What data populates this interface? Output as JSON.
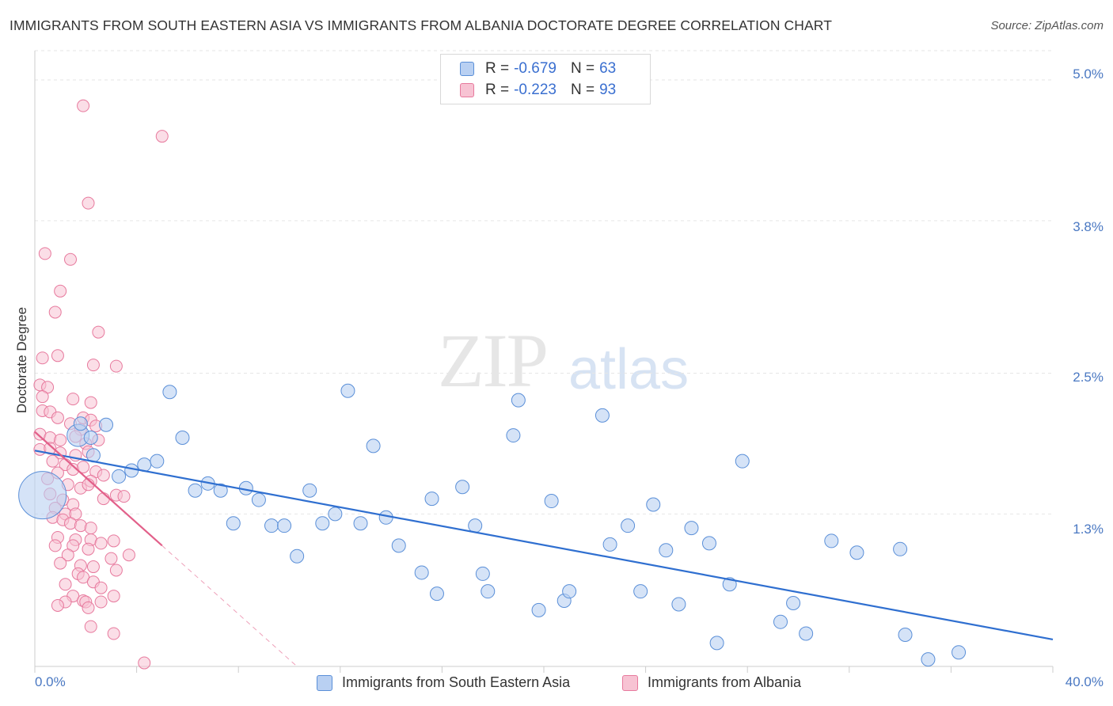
{
  "title": "IMMIGRANTS FROM SOUTH EASTERN ASIA VS IMMIGRANTS FROM ALBANIA DOCTORATE DEGREE CORRELATION CHART",
  "source": "Source: ZipAtlas.com",
  "watermark": {
    "part1": "ZIP",
    "part2": "atlas"
  },
  "colors": {
    "blue_fill": "#b9d0f2",
    "blue_stroke": "#5a8fd8",
    "blue_line": "#2f6fd0",
    "pink_fill": "#f7c3d3",
    "pink_stroke": "#e7799d",
    "pink_line": "#e2608a",
    "grid": "#e6e6e6",
    "axis_text": "#4a78c2"
  },
  "legend": [
    {
      "r_label": "R =",
      "r_value": "-0.679",
      "n_label": "N =",
      "n_value": "63"
    },
    {
      "r_label": "R =",
      "r_value": "-0.223",
      "n_label": "N =",
      "n_value": "93"
    }
  ],
  "series_labels": [
    "Immigrants from South Eastern Asia",
    "Immigrants from Albania"
  ],
  "chart_data": {
    "type": "scatter",
    "title": "IMMIGRANTS FROM SOUTH EASTERN ASIA VS IMMIGRANTS FROM ALBANIA DOCTORATE DEGREE CORRELATION CHART",
    "xlabel": "",
    "ylabel": "Doctorate Degree",
    "xlim": [
      0,
      40
    ],
    "ylim": [
      0,
      5.25
    ],
    "x_tick_labels": [
      "0.0%",
      "40.0%"
    ],
    "y_ticks": [
      1.3,
      2.5,
      3.8,
      5.0
    ],
    "y_tick_labels": [
      "1.3%",
      "2.5%",
      "3.8%",
      "5.0%"
    ],
    "grid": true,
    "legend_position": "top-center",
    "series": [
      {
        "name": "Immigrants from South Eastern Asia",
        "r": -0.679,
        "n": 63,
        "trend": {
          "x0": 0,
          "y0": 1.84,
          "x1": 40,
          "y1": 0.23
        },
        "points": [
          [
            0.3,
            1.46,
            30
          ],
          [
            1.7,
            1.97,
            14
          ],
          [
            1.8,
            2.07,
            10
          ],
          [
            2.2,
            1.95,
            10
          ],
          [
            2.3,
            1.8,
            10
          ],
          [
            2.8,
            2.06,
            10
          ],
          [
            3.3,
            1.62,
            10
          ],
          [
            3.8,
            1.67,
            10
          ],
          [
            4.3,
            1.72,
            10
          ],
          [
            4.8,
            1.75,
            10
          ],
          [
            5.3,
            2.34,
            10
          ],
          [
            5.8,
            1.95,
            10
          ],
          [
            6.3,
            1.5,
            10
          ],
          [
            6.8,
            1.56,
            10
          ],
          [
            7.3,
            1.5,
            10
          ],
          [
            7.8,
            1.22,
            10
          ],
          [
            8.3,
            1.52,
            10
          ],
          [
            8.8,
            1.42,
            10
          ],
          [
            9.3,
            1.2,
            10
          ],
          [
            9.8,
            1.2,
            10
          ],
          [
            10.3,
            0.94,
            10
          ],
          [
            10.8,
            1.5,
            10
          ],
          [
            11.3,
            1.22,
            10
          ],
          [
            11.8,
            1.3,
            10
          ],
          [
            12.3,
            2.35,
            10
          ],
          [
            12.8,
            1.22,
            10
          ],
          [
            13.3,
            1.88,
            10
          ],
          [
            13.8,
            1.27,
            10
          ],
          [
            14.3,
            1.03,
            10
          ],
          [
            15.2,
            0.8,
            10
          ],
          [
            15.6,
            1.43,
            10
          ],
          [
            15.8,
            0.62,
            10
          ],
          [
            16.8,
            1.53,
            10
          ],
          [
            17.3,
            1.2,
            10
          ],
          [
            17.6,
            0.79,
            10
          ],
          [
            17.8,
            0.64,
            10
          ],
          [
            18.8,
            1.97,
            10
          ],
          [
            19.0,
            2.27,
            10
          ],
          [
            19.8,
            0.48,
            10
          ],
          [
            20.3,
            1.41,
            10
          ],
          [
            20.8,
            0.56,
            10
          ],
          [
            21.0,
            0.64,
            10
          ],
          [
            22.3,
            2.14,
            10
          ],
          [
            22.6,
            1.04,
            10
          ],
          [
            23.3,
            1.2,
            10
          ],
          [
            23.8,
            0.64,
            10
          ],
          [
            24.3,
            1.38,
            10
          ],
          [
            24.8,
            0.99,
            10
          ],
          [
            25.3,
            0.53,
            10
          ],
          [
            25.8,
            1.18,
            10
          ],
          [
            26.5,
            1.05,
            10
          ],
          [
            26.8,
            0.2,
            10
          ],
          [
            27.3,
            0.7,
            10
          ],
          [
            27.8,
            1.75,
            10
          ],
          [
            29.3,
            0.38,
            10
          ],
          [
            29.8,
            0.54,
            10
          ],
          [
            30.3,
            0.28,
            10
          ],
          [
            31.3,
            1.07,
            10
          ],
          [
            32.3,
            0.97,
            10
          ],
          [
            34.0,
            1.0,
            10
          ],
          [
            34.2,
            0.27,
            10
          ],
          [
            35.1,
            0.06,
            10
          ],
          [
            36.3,
            0.12,
            10
          ]
        ]
      },
      {
        "name": "Immigrants from Albania",
        "r": -0.223,
        "n": 93,
        "trend": {
          "x0": 0,
          "y0": 2.0,
          "x1": 5.0,
          "y1": 1.03
        },
        "trend_dashed": {
          "x0": 5.0,
          "y0": 1.03,
          "x1": 10.3,
          "y1": 0.0
        },
        "points": [
          [
            1.9,
            4.78
          ],
          [
            5.0,
            4.52
          ],
          [
            2.1,
            3.95
          ],
          [
            0.4,
            3.52
          ],
          [
            1.4,
            3.47
          ],
          [
            1.0,
            3.2
          ],
          [
            0.8,
            3.02
          ],
          [
            2.5,
            2.85
          ],
          [
            0.3,
            2.63
          ],
          [
            0.9,
            2.65
          ],
          [
            2.3,
            2.57
          ],
          [
            3.2,
            2.56
          ],
          [
            0.2,
            2.4
          ],
          [
            0.5,
            2.38
          ],
          [
            0.3,
            2.3
          ],
          [
            1.5,
            2.28
          ],
          [
            2.2,
            2.25
          ],
          [
            0.3,
            2.18
          ],
          [
            0.6,
            2.17
          ],
          [
            0.9,
            2.12
          ],
          [
            1.9,
            2.12
          ],
          [
            2.2,
            2.1
          ],
          [
            2.4,
            2.05
          ],
          [
            1.4,
            2.07
          ],
          [
            1.8,
            2.02
          ],
          [
            0.2,
            1.98
          ],
          [
            0.6,
            1.95
          ],
          [
            1.0,
            1.93
          ],
          [
            1.6,
            1.96
          ],
          [
            2.0,
            1.9
          ],
          [
            2.5,
            1.93
          ],
          [
            0.2,
            1.85
          ],
          [
            0.6,
            1.86
          ],
          [
            1.0,
            1.82
          ],
          [
            1.6,
            1.8
          ],
          [
            2.1,
            1.83
          ],
          [
            0.7,
            1.75
          ],
          [
            1.2,
            1.72
          ],
          [
            1.5,
            1.68
          ],
          [
            1.9,
            1.7
          ],
          [
            2.4,
            1.66
          ],
          [
            0.9,
            1.65
          ],
          [
            0.5,
            1.6
          ],
          [
            1.3,
            1.55
          ],
          [
            1.8,
            1.52
          ],
          [
            2.2,
            1.58
          ],
          [
            2.7,
            1.63
          ],
          [
            2.1,
            1.55
          ],
          [
            0.6,
            1.47
          ],
          [
            1.1,
            1.42
          ],
          [
            1.5,
            1.38
          ],
          [
            0.8,
            1.35
          ],
          [
            1.2,
            1.3
          ],
          [
            1.6,
            1.3
          ],
          [
            2.7,
            1.43
          ],
          [
            3.2,
            1.46
          ],
          [
            3.5,
            1.45
          ],
          [
            0.7,
            1.27
          ],
          [
            1.1,
            1.25
          ],
          [
            1.4,
            1.22
          ],
          [
            1.8,
            1.2
          ],
          [
            2.2,
            1.18
          ],
          [
            0.9,
            1.1
          ],
          [
            1.6,
            1.08
          ],
          [
            2.2,
            1.08
          ],
          [
            3.1,
            1.07
          ],
          [
            0.8,
            1.03
          ],
          [
            1.5,
            1.03
          ],
          [
            2.1,
            1.0
          ],
          [
            2.6,
            1.05
          ],
          [
            3.7,
            0.95
          ],
          [
            1.3,
            0.95
          ],
          [
            3.0,
            0.92
          ],
          [
            1.0,
            0.88
          ],
          [
            1.8,
            0.86
          ],
          [
            2.3,
            0.85
          ],
          [
            3.2,
            0.82
          ],
          [
            1.7,
            0.79
          ],
          [
            1.9,
            0.76
          ],
          [
            2.3,
            0.72
          ],
          [
            1.2,
            0.7
          ],
          [
            2.6,
            0.67
          ],
          [
            1.5,
            0.6
          ],
          [
            1.9,
            0.56
          ],
          [
            3.1,
            0.6
          ],
          [
            2.0,
            0.55
          ],
          [
            1.2,
            0.55
          ],
          [
            0.9,
            0.52
          ],
          [
            2.1,
            0.5
          ],
          [
            2.6,
            0.55
          ],
          [
            2.2,
            0.34
          ],
          [
            3.1,
            0.28
          ],
          [
            4.3,
            0.03
          ]
        ]
      }
    ]
  }
}
